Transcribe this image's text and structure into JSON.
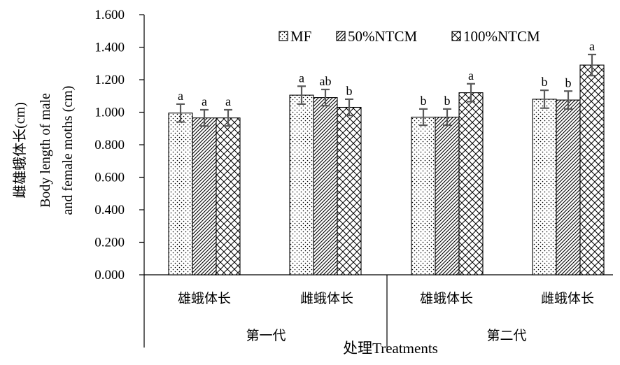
{
  "chart_data": {
    "type": "bar",
    "ylabel_lines": [
      "雌雄蛾体长(cm)",
      "Body length of male",
      "and female moths (cm)"
    ],
    "xlabel": "处理Treatments",
    "ylim": [
      0,
      1.6
    ],
    "y_ticks": [
      "0.000",
      "0.200",
      "0.400",
      "0.600",
      "0.800",
      "1.000",
      "1.200",
      "1.400",
      "1.600"
    ],
    "groups": [
      "第一代",
      "第二代"
    ],
    "categories": [
      "雄蛾体长",
      "雌蛾体长",
      "雄蛾体长",
      "雌蛾体长"
    ],
    "legend_position": "top-right",
    "series": [
      {
        "name": "MF",
        "pattern": "dots",
        "values": [
          0.995,
          1.105,
          0.97,
          1.08
        ],
        "errors": [
          0.055,
          0.055,
          0.05,
          0.055
        ],
        "labels": [
          "a",
          "a",
          "b",
          "b"
        ]
      },
      {
        "name": "50%NTCM",
        "pattern": "diagonal",
        "values": [
          0.965,
          1.09,
          0.97,
          1.075
        ],
        "errors": [
          0.05,
          0.05,
          0.05,
          0.055
        ],
        "labels": [
          "a",
          "ab",
          "b",
          "b"
        ]
      },
      {
        "name": "100%NTCM",
        "pattern": "crosshatch",
        "values": [
          0.965,
          1.03,
          1.12,
          1.29
        ],
        "errors": [
          0.05,
          0.05,
          0.055,
          0.065
        ],
        "labels": [
          "a",
          "b",
          "a",
          "a"
        ]
      }
    ],
    "grid": false,
    "colors": {
      "axis": "#000000",
      "error_bar": "#5a5a5a",
      "fill": "#ffffff"
    }
  }
}
